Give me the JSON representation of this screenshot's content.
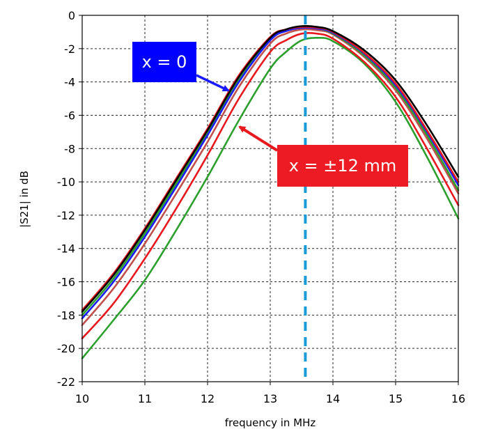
{
  "chart_data": {
    "type": "line",
    "title": "",
    "xlabel": "frequency in MHz",
    "ylabel": "|S21| in dB",
    "xlim": [
      10,
      16
    ],
    "ylim": [
      -22,
      0
    ],
    "x_ticks": [
      10,
      11,
      12,
      13,
      14,
      15,
      16
    ],
    "y_ticks": [
      0,
      -2,
      -4,
      -6,
      -8,
      -10,
      -12,
      -14,
      -16,
      -18,
      -20,
      -22
    ],
    "grid": true,
    "x": [
      10,
      10.5,
      11,
      11.5,
      12,
      12.5,
      13,
      13.25,
      13.5,
      13.75,
      14,
      14.5,
      15,
      15.5,
      16
    ],
    "series": [
      {
        "color": "#000000",
        "values": [
          -17.8,
          -15.6,
          -12.9,
          -9.9,
          -6.9,
          -3.7,
          -1.35,
          -0.85,
          -0.65,
          -0.7,
          -0.95,
          -2.1,
          -3.9,
          -6.6,
          -9.7
        ]
      },
      {
        "color": "#e8191e",
        "values": [
          -17.7,
          -15.5,
          -12.8,
          -9.8,
          -6.8,
          -3.6,
          -1.3,
          -0.85,
          -0.7,
          -0.75,
          -1.0,
          -2.25,
          -4.1,
          -6.9,
          -10.0
        ]
      },
      {
        "color": "#1a1aff",
        "values": [
          -18.2,
          -16.0,
          -13.3,
          -10.3,
          -7.2,
          -4.0,
          -1.5,
          -0.95,
          -0.75,
          -0.8,
          -1.05,
          -2.3,
          -4.2,
          -7.0,
          -10.2
        ]
      },
      {
        "color": "#2ca02c",
        "values": [
          -18.0,
          -15.8,
          -13.1,
          -10.1,
          -7.1,
          -3.9,
          -1.45,
          -0.95,
          -0.75,
          -0.8,
          -1.1,
          -2.4,
          -4.35,
          -7.2,
          -10.5
        ]
      },
      {
        "color": "#c0504d",
        "values": [
          -18.6,
          -16.4,
          -13.7,
          -10.7,
          -7.6,
          -4.3,
          -1.7,
          -1.1,
          -0.85,
          -0.9,
          -1.15,
          -2.5,
          -4.5,
          -7.4,
          -10.7
        ]
      },
      {
        "color": "#e8191e",
        "values": [
          -19.4,
          -17.3,
          -14.6,
          -11.6,
          -8.4,
          -5.0,
          -2.2,
          -1.5,
          -1.1,
          -1.1,
          -1.4,
          -2.8,
          -4.9,
          -8.0,
          -11.4
        ]
      },
      {
        "color": "#2ca02c",
        "values": [
          -20.6,
          -18.3,
          -15.9,
          -12.9,
          -9.7,
          -6.3,
          -3.2,
          -2.2,
          -1.5,
          -1.35,
          -1.55,
          -2.9,
          -5.2,
          -8.5,
          -12.2
        ]
      }
    ],
    "reference_line": {
      "x": 13.56,
      "color": "#1a9bd7",
      "style": "dashed"
    },
    "annotations": [
      {
        "text": "x = 0",
        "bg_color": "#0000ff",
        "arrow_color": "#1a1aff"
      },
      {
        "text": "x = ±12 mm",
        "bg_color": "#ed1c24",
        "arrow_color": "#e8191e"
      }
    ]
  }
}
